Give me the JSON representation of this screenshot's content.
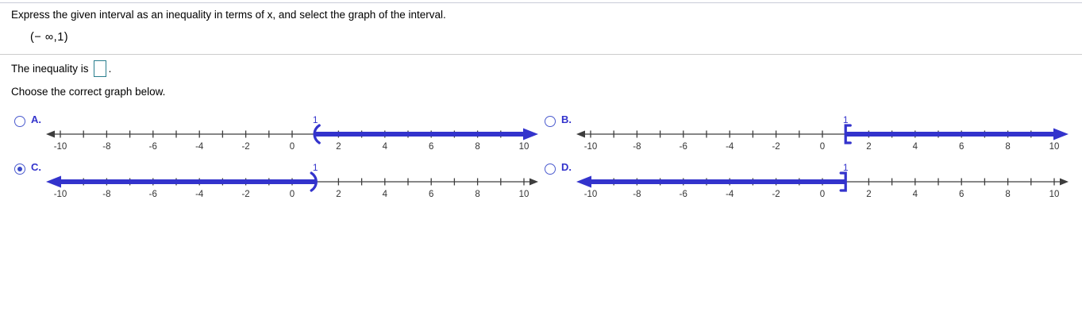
{
  "page": {
    "question": "Express the given interval as an inequality in terms of x, and select the graph of the interval.",
    "interval": "(− ∞,1)",
    "inequality_prefix": "The inequality is",
    "inequality_suffix": ".",
    "answer_box_value": "",
    "choose_prompt": "Choose the correct graph below."
  },
  "colors": {
    "accent_blue": "#3333cc",
    "axis_black": "#3d3d3d",
    "tick_label": "#333333",
    "answer_box_border": "#2a7e8e",
    "divider": "#cccccc"
  },
  "chart_data": [
    {
      "type": "number-line",
      "option": "A.",
      "selected": false,
      "axis_min": -10,
      "axis_max": 10,
      "tick_step": 1,
      "label_step": 2,
      "boundary": 1,
      "boundary_label": "1",
      "marker": "(",
      "ray": "right"
    },
    {
      "type": "number-line",
      "option": "B.",
      "selected": false,
      "axis_min": -10,
      "axis_max": 10,
      "tick_step": 1,
      "label_step": 2,
      "boundary": 1,
      "boundary_label": "1",
      "marker": "[",
      "ray": "right"
    },
    {
      "type": "number-line",
      "option": "C.",
      "selected": true,
      "axis_min": -10,
      "axis_max": 10,
      "tick_step": 1,
      "label_step": 2,
      "boundary": 1,
      "boundary_label": "1",
      "marker": ")",
      "ray": "left"
    },
    {
      "type": "number-line",
      "option": "D.",
      "selected": false,
      "axis_min": -10,
      "axis_max": 10,
      "tick_step": 1,
      "label_step": 2,
      "boundary": 1,
      "boundary_label": "1",
      "marker": "]",
      "ray": "left"
    }
  ],
  "options": [
    {
      "label": "A."
    },
    {
      "label": "B."
    },
    {
      "label": "C."
    },
    {
      "label": "D."
    }
  ]
}
